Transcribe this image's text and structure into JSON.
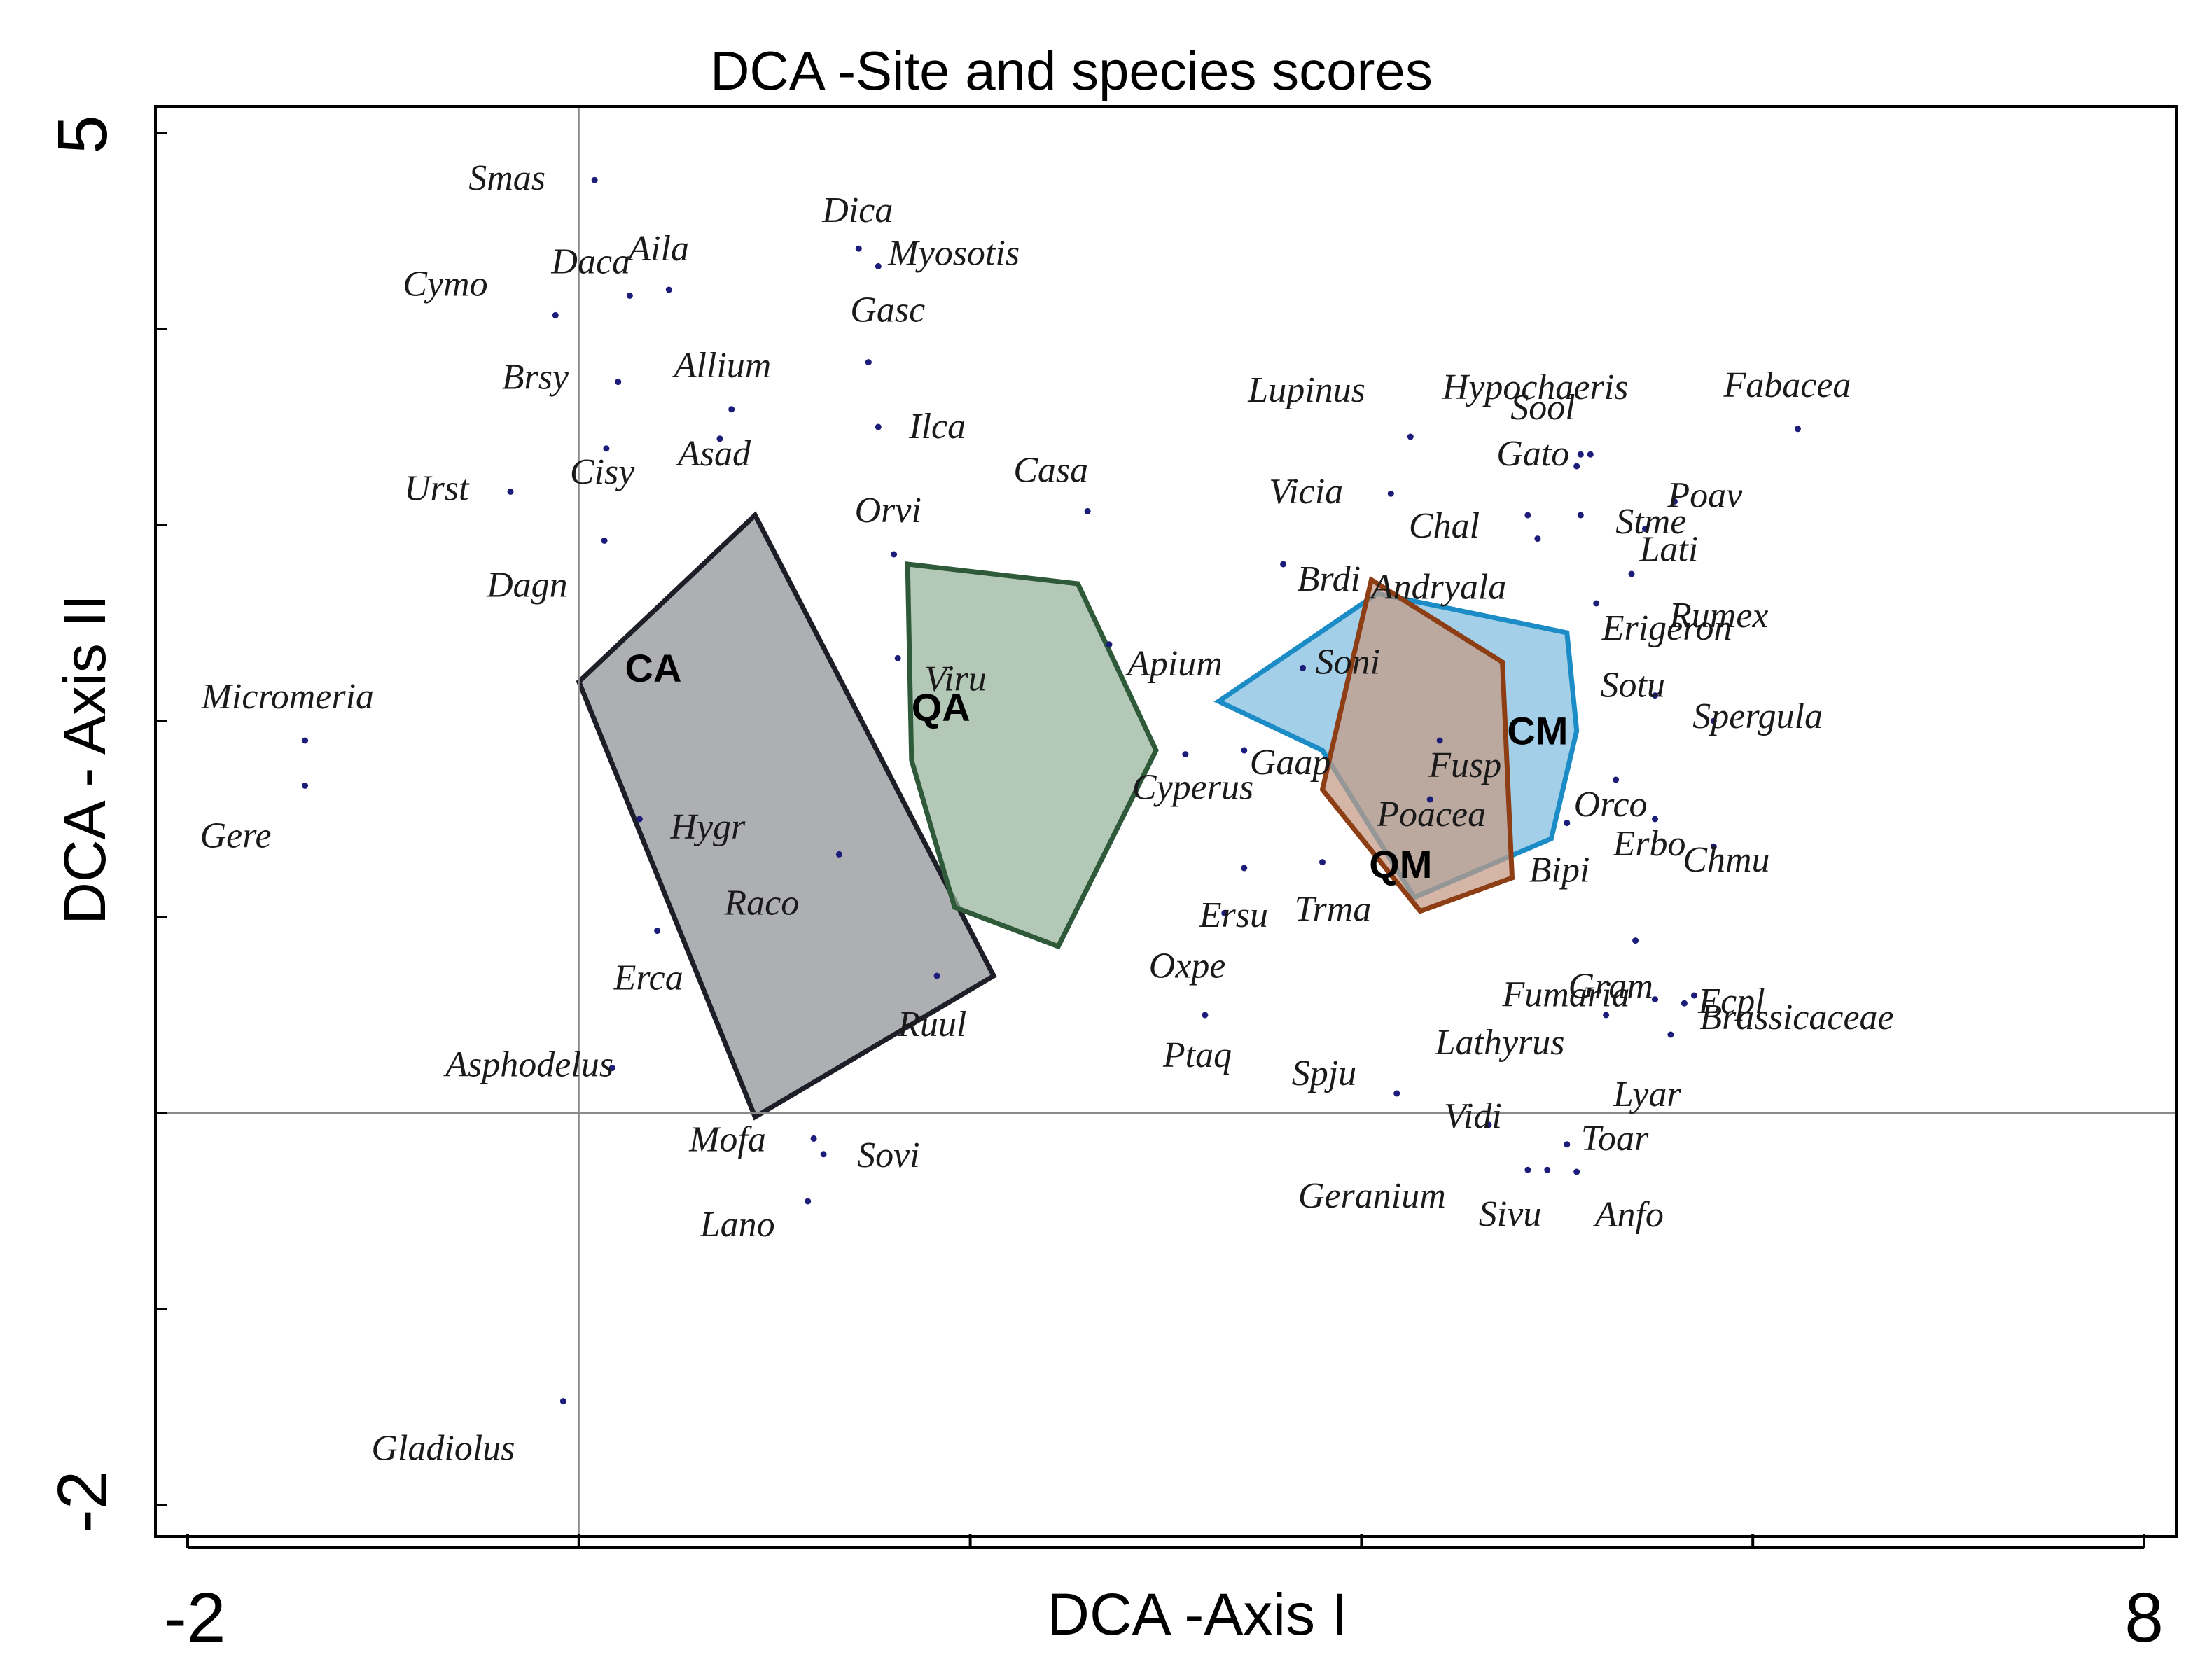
{
  "chart_data": {
    "type": "scatter",
    "title": "DCA -Site and species scores",
    "xlabel": "DCA -Axis I",
    "ylabel": "DCA - Axis II",
    "xlim": [
      -2,
      8
    ],
    "ylim": [
      -2,
      5
    ],
    "x_tick_labels": [
      "-2",
      "8"
    ],
    "y_tick_labels": [
      "5",
      "-2"
    ],
    "x_ticks": [
      -2,
      0,
      2,
      4,
      6,
      8
    ],
    "y_ticks": [
      -2,
      -1,
      0,
      1,
      2,
      3,
      4,
      5
    ],
    "reference_lines": {
      "x": 0,
      "y": 0
    },
    "species": [
      {
        "name": "Smas",
        "x": 0.08,
        "y": 4.76
      },
      {
        "name": "Daca",
        "x": 0.26,
        "y": 4.17
      },
      {
        "name": "Aila",
        "x": 0.46,
        "y": 4.2
      },
      {
        "name": "Cymo",
        "x": -0.12,
        "y": 4.07
      },
      {
        "name": "Dica",
        "x": 1.43,
        "y": 4.41
      },
      {
        "name": "Myosotis",
        "x": 1.53,
        "y": 4.32
      },
      {
        "name": "Gasc",
        "x": 1.48,
        "y": 3.83
      },
      {
        "name": "Allium",
        "x": 0.78,
        "y": 3.59
      },
      {
        "name": "Brsy",
        "x": 0.2,
        "y": 3.73
      },
      {
        "name": "Ilca",
        "x": 1.53,
        "y": 3.5
      },
      {
        "name": "Urst",
        "x": -0.35,
        "y": 3.17
      },
      {
        "name": "Cisy",
        "x": 0.14,
        "y": 3.39
      },
      {
        "name": "Asad",
        "x": 0.72,
        "y": 3.44
      },
      {
        "name": "Casa",
        "x": 2.6,
        "y": 3.07
      },
      {
        "name": "Orvi",
        "x": 1.61,
        "y": 2.85
      },
      {
        "name": "Dagn",
        "x": 0.13,
        "y": 2.92
      },
      {
        "name": "Viru",
        "x": 1.63,
        "y": 2.32
      },
      {
        "name": "Apium",
        "x": 2.71,
        "y": 2.39
      },
      {
        "name": "Micromeria",
        "x": -1.4,
        "y": 1.9
      },
      {
        "name": "Gere",
        "x": -1.4,
        "y": 1.67
      },
      {
        "name": "Hygr",
        "x": 0.31,
        "y": 1.5
      },
      {
        "name": "Raco",
        "x": 1.33,
        "y": 1.32
      },
      {
        "name": "Erca",
        "x": 0.4,
        "y": 0.93
      },
      {
        "name": "Ruul",
        "x": 1.83,
        "y": 0.7
      },
      {
        "name": "Asphodelus",
        "x": 0.17,
        "y": 0.23
      },
      {
        "name": "Mofa",
        "x": 1.2,
        "y": -0.13
      },
      {
        "name": "Sovi",
        "x": 1.25,
        "y": -0.21
      },
      {
        "name": "Lano",
        "x": 1.17,
        "y": -0.45
      },
      {
        "name": "Gladiolus",
        "x": -0.08,
        "y": -1.47
      },
      {
        "name": "Lupinus",
        "x": 4.25,
        "y": 3.45
      },
      {
        "name": "Hypochaeris",
        "x": 5.1,
        "y": 3.3
      },
      {
        "name": "Sool",
        "x": 5.12,
        "y": 3.36
      },
      {
        "name": "Fabacea",
        "x": 6.23,
        "y": 3.49
      },
      {
        "name": "Vicia",
        "x": 4.15,
        "y": 3.16
      },
      {
        "name": "Gato",
        "x": 5.17,
        "y": 3.36
      },
      {
        "name": "Poav",
        "x": 5.6,
        "y": 3.12
      },
      {
        "name": "Chal",
        "x": 4.85,
        "y": 3.05
      },
      {
        "name": "Stme",
        "x": 5.12,
        "y": 3.05
      },
      {
        "name": "Lati",
        "x": 5.45,
        "y": 2.98
      },
      {
        "name": "Andryala",
        "x": 4.9,
        "y": 2.93
      },
      {
        "name": "Rumex",
        "x": 5.38,
        "y": 2.75
      },
      {
        "name": "Brdi",
        "x": 3.6,
        "y": 2.8
      },
      {
        "name": "Erigeron",
        "x": 5.2,
        "y": 2.6
      },
      {
        "name": "Sotu",
        "x": 5.5,
        "y": 2.13
      },
      {
        "name": "Spergula",
        "x": 5.8,
        "y": 2.0
      },
      {
        "name": "Soni",
        "x": 3.7,
        "y": 2.27
      },
      {
        "name": "Gaap",
        "x": 3.4,
        "y": 1.85
      },
      {
        "name": "Fusp",
        "x": 4.4,
        "y": 1.9
      },
      {
        "name": "Orco",
        "x": 5.3,
        "y": 1.7
      },
      {
        "name": "Poacea",
        "x": 4.35,
        "y": 1.6
      },
      {
        "name": "Erbo",
        "x": 5.5,
        "y": 1.5
      },
      {
        "name": "Chmu",
        "x": 5.8,
        "y": 1.36
      },
      {
        "name": "Cyperus",
        "x": 3.1,
        "y": 1.83
      },
      {
        "name": "Ersu",
        "x": 3.4,
        "y": 1.25
      },
      {
        "name": "Oxpe",
        "x": 3.3,
        "y": 1.02
      },
      {
        "name": "Trma",
        "x": 3.8,
        "y": 1.28
      },
      {
        "name": "Bipi",
        "x": 5.05,
        "y": 1.48
      },
      {
        "name": "Gram",
        "x": 5.4,
        "y": 0.88
      },
      {
        "name": "Brassicaceae",
        "x": 5.7,
        "y": 0.6
      },
      {
        "name": "Fumaria",
        "x": 5.5,
        "y": 0.58
      },
      {
        "name": "Ecpl",
        "x": 5.65,
        "y": 0.56
      },
      {
        "name": "Lathyrus",
        "x": 5.25,
        "y": 0.5
      },
      {
        "name": "Ptaq",
        "x": 3.2,
        "y": 0.5
      },
      {
        "name": "Spju",
        "x": 4.18,
        "y": 0.1
      },
      {
        "name": "Vidi",
        "x": 4.65,
        "y": -0.06
      },
      {
        "name": "Lyar",
        "x": 5.58,
        "y": 0.4
      },
      {
        "name": "Toar",
        "x": 5.05,
        "y": -0.16
      },
      {
        "name": "Geranium",
        "x": 4.85,
        "y": -0.29
      },
      {
        "name": "Sivu",
        "x": 4.95,
        "y": -0.29
      },
      {
        "name": "Anfo",
        "x": 5.1,
        "y": -0.3
      }
    ],
    "groups": [
      {
        "name": "CA",
        "fill": "#8f9096",
        "stroke": "#1e1e28",
        "vertices": [
          [
            0,
            2.2
          ],
          [
            0.9,
            3.05
          ],
          [
            2.12,
            0.7
          ],
          [
            0.9,
            -0.02
          ]
        ]
      },
      {
        "name": "QA",
        "fill": "#95b39b",
        "stroke": "#2f5a3a",
        "vertices": [
          [
            1.68,
            2.8
          ],
          [
            2.55,
            2.7
          ],
          [
            2.95,
            1.85
          ],
          [
            2.45,
            0.85
          ],
          [
            1.92,
            1.05
          ],
          [
            1.7,
            1.8
          ]
        ]
      },
      {
        "name": "CM",
        "fill": "#7fbce0",
        "stroke": "#1c8cc6",
        "vertices": [
          [
            3.27,
            2.1
          ],
          [
            4.08,
            2.65
          ],
          [
            5.05,
            2.45
          ],
          [
            5.1,
            1.95
          ],
          [
            4.97,
            1.4
          ],
          [
            4.27,
            1.1
          ],
          [
            3.8,
            1.85
          ]
        ]
      },
      {
        "name": "QM",
        "fill": "#c59a83",
        "stroke": "#8e3e14",
        "vertices": [
          [
            4.05,
            2.72
          ],
          [
            4.72,
            2.3
          ],
          [
            4.77,
            1.2
          ],
          [
            4.3,
            1.03
          ],
          [
            3.8,
            1.65
          ]
        ]
      }
    ]
  }
}
